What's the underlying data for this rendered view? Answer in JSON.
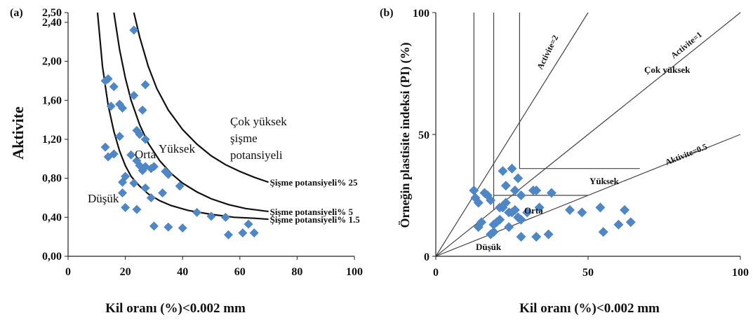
{
  "colors": {
    "marker": "#4f87c6",
    "curve": "#111111",
    "axis": "#222222",
    "line_b": "#444444"
  },
  "chart_data": [
    {
      "type": "scatter",
      "panel_label": "(a)",
      "xlabel": "Kil oranı (%)<0.002 mm",
      "ylabel": "Aktivite",
      "xlim": [
        0,
        100
      ],
      "ylim": [
        0,
        2.5
      ],
      "xticks": [
        0,
        20,
        40,
        60,
        80,
        100
      ],
      "xtick_labels": [
        "0",
        "20",
        "40",
        "60",
        "80",
        "100"
      ],
      "yticks": [
        0,
        0.4,
        0.8,
        1.2,
        1.6,
        2.0,
        2.4,
        2.5
      ],
      "ytick_labels": [
        "0,00",
        "0,40",
        "0,80",
        "1,20",
        "1,60",
        "2,00",
        "2,40",
        "2,50"
      ],
      "grid": false,
      "series": [
        {
          "marker": "diamond",
          "points": [
            [
              23,
              2.32
            ],
            [
              13,
              1.8
            ],
            [
              14,
              1.82
            ],
            [
              16,
              1.74
            ],
            [
              27,
              1.76
            ],
            [
              23,
              1.65
            ],
            [
              15,
              1.54
            ],
            [
              19,
              1.52
            ],
            [
              18,
              1.56
            ],
            [
              26,
              1.5
            ],
            [
              24,
              1.29
            ],
            [
              25,
              1.25
            ],
            [
              18,
              1.23
            ],
            [
              27,
              1.2
            ],
            [
              13,
              1.12
            ],
            [
              22,
              1.04
            ],
            [
              14,
              1.02
            ],
            [
              16,
              1.05
            ],
            [
              24,
              0.98
            ],
            [
              25,
              0.93
            ],
            [
              27,
              0.92
            ],
            [
              29,
              0.9
            ],
            [
              26,
              0.88
            ],
            [
              30,
              0.92
            ],
            [
              20,
              0.82
            ],
            [
              19,
              0.76
            ],
            [
              34,
              0.87
            ],
            [
              35,
              0.84
            ],
            [
              23,
              0.75
            ],
            [
              27,
              0.7
            ],
            [
              39,
              0.72
            ],
            [
              19,
              0.65
            ],
            [
              33,
              0.65
            ],
            [
              29,
              0.6
            ],
            [
              20,
              0.5
            ],
            [
              24,
              0.48
            ],
            [
              45,
              0.45
            ],
            [
              50,
              0.41
            ],
            [
              55,
              0.4
            ],
            [
              30,
              0.31
            ],
            [
              35,
              0.3
            ],
            [
              40,
              0.29
            ],
            [
              63,
              0.33
            ],
            [
              56,
              0.22
            ],
            [
              61,
              0.24
            ],
            [
              65,
              0.24
            ]
          ]
        }
      ],
      "curves": [
        {
          "name": "Şişme potansiyeli% 1.5",
          "points": [
            [
              10.3,
              2.5
            ],
            [
              12,
              1.95
            ],
            [
              14,
              1.55
            ],
            [
              16,
              1.28
            ],
            [
              18,
              1.08
            ],
            [
              20,
              0.93
            ],
            [
              22,
              0.82
            ],
            [
              25,
              0.72
            ],
            [
              28,
              0.64
            ],
            [
              32,
              0.57
            ],
            [
              36,
              0.52
            ],
            [
              42,
              0.47
            ],
            [
              50,
              0.43
            ],
            [
              58,
              0.4
            ],
            [
              65,
              0.39
            ],
            [
              70,
              0.38
            ]
          ]
        },
        {
          "name": "Şişme potansiyeli% 5",
          "points": [
            [
              16,
              2.5
            ],
            [
              18,
              2.12
            ],
            [
              20,
              1.83
            ],
            [
              22,
              1.6
            ],
            [
              25,
              1.35
            ],
            [
              28,
              1.16
            ],
            [
              32,
              0.98
            ],
            [
              36,
              0.85
            ],
            [
              40,
              0.75
            ],
            [
              45,
              0.66
            ],
            [
              50,
              0.59
            ],
            [
              56,
              0.53
            ],
            [
              62,
              0.49
            ],
            [
              70,
              0.46
            ]
          ]
        },
        {
          "name": "Şişme potansiyeli% 25",
          "points": [
            [
              23,
              2.5
            ],
            [
              25,
              2.25
            ],
            [
              28,
              1.95
            ],
            [
              31,
              1.72
            ],
            [
              35,
              1.5
            ],
            [
              40,
              1.3
            ],
            [
              45,
              1.15
            ],
            [
              50,
              1.03
            ],
            [
              55,
              0.94
            ],
            [
              60,
              0.87
            ],
            [
              65,
              0.81
            ],
            [
              70,
              0.76
            ]
          ]
        }
      ],
      "zone_labels": [
        "Düşük",
        "Orta",
        "Yüksek",
        "Çok yüksek",
        "şişme",
        "potansiyeli"
      ]
    },
    {
      "type": "scatter",
      "panel_label": "(b)",
      "xlabel": "Kil oranı (%)<0.002 mm",
      "ylabel": "Örneğin plastisite indeksi (PI) (%)",
      "xlim": [
        0,
        100
      ],
      "ylim": [
        0,
        100
      ],
      "xticks": [
        0,
        50,
        100
      ],
      "xtick_labels": [
        "0",
        "50",
        "100"
      ],
      "yticks": [
        0,
        50,
        100
      ],
      "ytick_labels": [
        "0",
        "50",
        "100"
      ],
      "grid": false,
      "series": [
        {
          "marker": "diamond",
          "points": [
            [
              12.5,
              27
            ],
            [
              13,
              24
            ],
            [
              14,
              22
            ],
            [
              14,
              12
            ],
            [
              15,
              14
            ],
            [
              16,
              26
            ],
            [
              17,
              25
            ],
            [
              18,
              23
            ],
            [
              19,
              13
            ],
            [
              19,
              10
            ],
            [
              20,
              14
            ],
            [
              18,
              9
            ],
            [
              21,
              15
            ],
            [
              22,
              20
            ],
            [
              23,
              22
            ],
            [
              24,
              18
            ],
            [
              25,
              18
            ],
            [
              26,
              19
            ],
            [
              27,
              16
            ],
            [
              28,
              15
            ],
            [
              22,
              35
            ],
            [
              25,
              36
            ],
            [
              27,
              32
            ],
            [
              23,
              29
            ],
            [
              26,
              27
            ],
            [
              28,
              25
            ],
            [
              24,
              12
            ],
            [
              28,
              8
            ],
            [
              32,
              27
            ],
            [
              33,
              27
            ],
            [
              34,
              20
            ],
            [
              38,
              26
            ],
            [
              33,
              8
            ],
            [
              37,
              9
            ],
            [
              44,
              19
            ],
            [
              48,
              18
            ],
            [
              54,
              20
            ],
            [
              55,
              10
            ],
            [
              60,
              13
            ],
            [
              62,
              19
            ],
            [
              64,
              14
            ],
            [
              30,
              18
            ],
            [
              21,
              20
            ]
          ]
        }
      ],
      "lines": [
        {
          "name": "Activite=2",
          "points": [
            [
              0,
              0
            ],
            [
              50,
              100
            ]
          ]
        },
        {
          "name": "Activite=1",
          "points": [
            [
              0,
              0
            ],
            [
              100,
              100
            ]
          ]
        },
        {
          "name": "Aktivite=0.5",
          "points": [
            [
              0,
              0
            ],
            [
              100,
              50
            ]
          ]
        }
      ],
      "boundaries": [
        {
          "points": [
            [
              12.5,
              100
            ],
            [
              12.5,
              25
            ]
          ]
        },
        {
          "points": [
            [
              19,
              100
            ],
            [
              19,
              19
            ]
          ]
        },
        {
          "points": [
            [
              27.5,
              100
            ],
            [
              27.5,
              36
            ],
            [
              67,
              36
            ]
          ]
        },
        {
          "points": [
            [
              19,
              25
            ],
            [
              50,
              25
            ]
          ]
        }
      ],
      "zone_labels": [
        "Çok yüksek",
        "Yüksek",
        "Orta",
        "Düşük"
      ]
    }
  ]
}
